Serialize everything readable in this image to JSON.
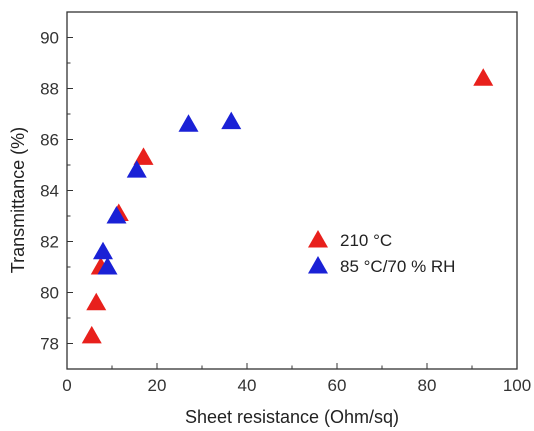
{
  "chart_data": {
    "type": "scatter",
    "xlabel": "Sheet resistance (Ohm/sq)",
    "ylabel": "Transmittance (%)",
    "xlim": [
      0,
      100
    ],
    "ylim": [
      77,
      91
    ],
    "xticks": [
      0,
      20,
      40,
      60,
      80,
      100
    ],
    "yticks": [
      78,
      80,
      82,
      84,
      86,
      88,
      90
    ],
    "grid": false,
    "legend_position": "center-right",
    "marker": "triangle",
    "series": [
      {
        "name": "210 °C",
        "color": "#e8201c",
        "points": [
          {
            "x": 5.5,
            "y": 78.3
          },
          {
            "x": 6.5,
            "y": 79.6
          },
          {
            "x": 7.5,
            "y": 81.0
          },
          {
            "x": 11.5,
            "y": 83.1
          },
          {
            "x": 17.0,
            "y": 85.3
          },
          {
            "x": 92.5,
            "y": 88.4
          }
        ]
      },
      {
        "name": "85 °C/70 % RH",
        "color": "#1a21d6",
        "points": [
          {
            "x": 8.0,
            "y": 81.6
          },
          {
            "x": 9.0,
            "y": 81.0
          },
          {
            "x": 11.0,
            "y": 83.0
          },
          {
            "x": 15.5,
            "y": 84.8
          },
          {
            "x": 27.0,
            "y": 86.6
          },
          {
            "x": 36.5,
            "y": 86.7
          }
        ]
      }
    ]
  }
}
